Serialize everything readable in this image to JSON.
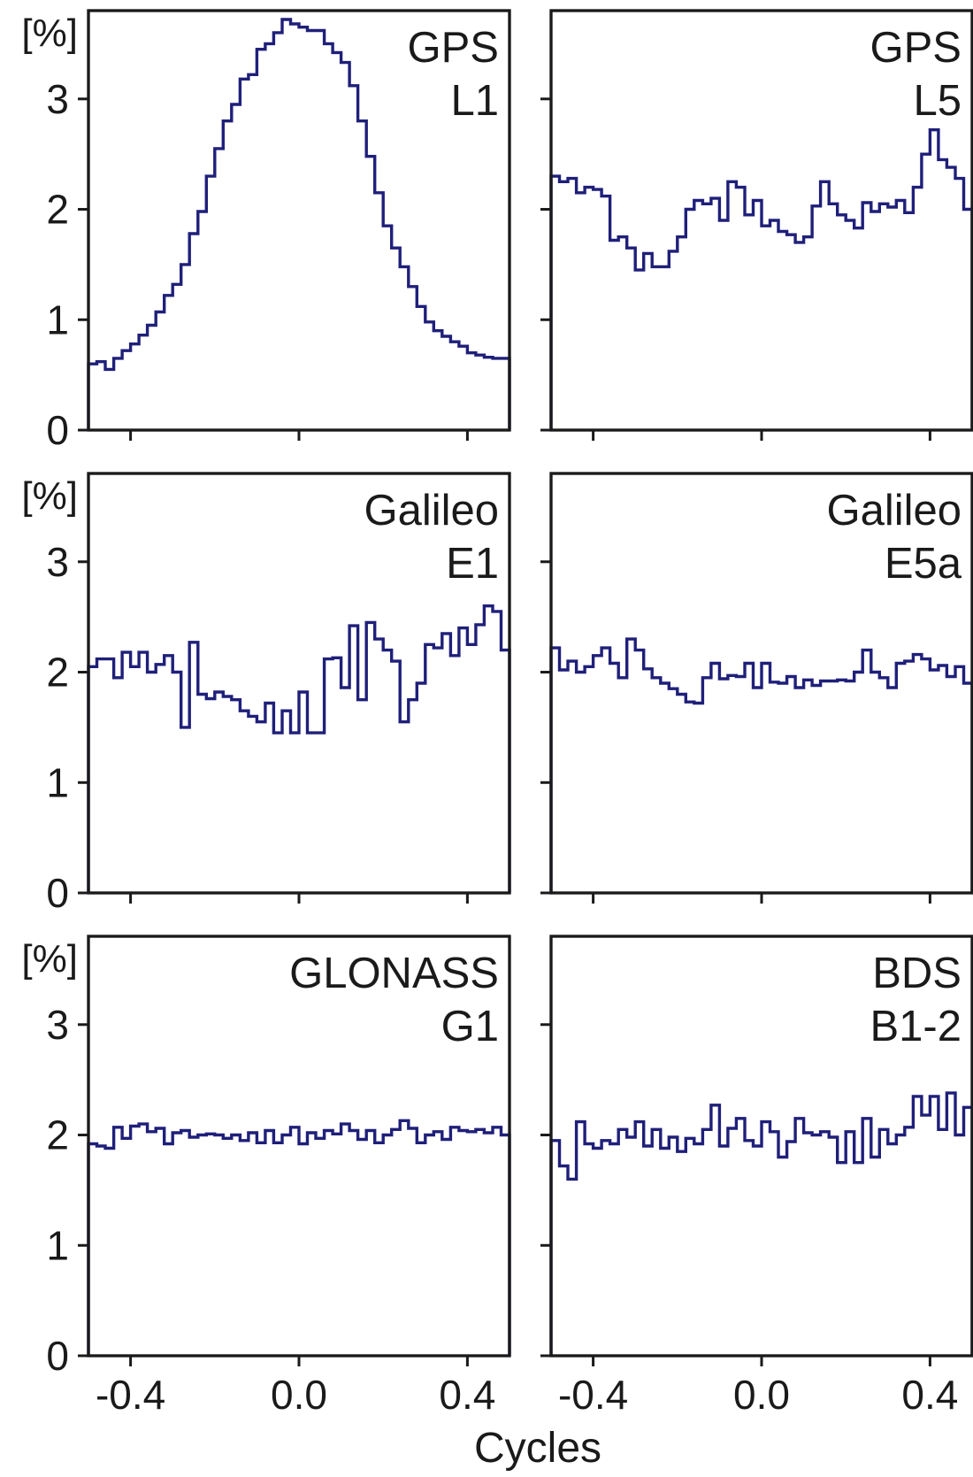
{
  "chart_data": {
    "type": "line",
    "layout": "3x2 grid",
    "xlabel": "Cycles",
    "ylabel": "[%]",
    "xlim": [
      -0.5,
      0.5
    ],
    "ylim": [
      0,
      3.8
    ],
    "xticks": [
      -0.4,
      0.0,
      0.4
    ],
    "xtick_labels": [
      "-0.4",
      "0.0",
      "0.4"
    ],
    "yticks": [
      0,
      1,
      2,
      3
    ],
    "ytick_labels": [
      "0",
      "1",
      "2",
      "3"
    ],
    "series_color": "#1f1f7a",
    "bins": 50,
    "panels": [
      {
        "label_line1": "GPS",
        "label_line2": "L1",
        "values": [
          0.6,
          0.62,
          0.55,
          0.65,
          0.72,
          0.78,
          0.86,
          0.95,
          1.07,
          1.22,
          1.32,
          1.5,
          1.78,
          1.98,
          2.3,
          2.55,
          2.8,
          2.95,
          3.18,
          3.22,
          3.45,
          3.5,
          3.6,
          3.72,
          3.68,
          3.65,
          3.62,
          3.62,
          3.5,
          3.42,
          3.33,
          3.12,
          2.8,
          2.48,
          2.15,
          1.85,
          1.65,
          1.48,
          1.3,
          1.12,
          0.98,
          0.9,
          0.85,
          0.8,
          0.76,
          0.7,
          0.68,
          0.66,
          0.65,
          0.65
        ]
      },
      {
        "label_line1": "GPS",
        "label_line2": "L5",
        "values": [
          2.3,
          2.25,
          2.28,
          2.15,
          2.2,
          2.18,
          2.12,
          1.72,
          1.75,
          1.65,
          1.45,
          1.6,
          1.48,
          1.48,
          1.62,
          1.75,
          2.0,
          2.08,
          2.05,
          2.1,
          1.9,
          2.25,
          2.2,
          1.95,
          2.08,
          1.85,
          1.9,
          1.8,
          1.77,
          1.7,
          1.75,
          2.03,
          2.25,
          2.05,
          1.95,
          1.9,
          1.83,
          2.06,
          1.98,
          2.05,
          2.02,
          2.08,
          1.97,
          2.2,
          2.5,
          2.72,
          2.45,
          2.38,
          2.28,
          2.0
        ]
      },
      {
        "label_line1": "Galileo",
        "label_line2": "E1",
        "values": [
          2.05,
          2.12,
          2.12,
          1.95,
          2.18,
          2.05,
          2.18,
          2.0,
          2.07,
          2.15,
          2.0,
          1.5,
          2.27,
          1.8,
          1.76,
          1.82,
          1.78,
          1.75,
          1.65,
          1.6,
          1.55,
          1.72,
          1.45,
          1.65,
          1.45,
          1.82,
          1.45,
          1.45,
          2.12,
          2.13,
          1.86,
          2.42,
          1.75,
          2.45,
          2.3,
          2.2,
          2.1,
          1.55,
          1.75,
          1.9,
          2.25,
          2.22,
          2.35,
          2.15,
          2.4,
          2.25,
          2.43,
          2.6,
          2.55,
          2.2
        ]
      },
      {
        "label_line1": "Galileo",
        "label_line2": "E5a",
        "values": [
          2.22,
          2.02,
          2.1,
          2.0,
          2.05,
          2.15,
          2.22,
          2.08,
          1.95,
          2.3,
          2.2,
          2.03,
          1.95,
          1.9,
          1.85,
          1.8,
          1.73,
          1.72,
          1.95,
          2.08,
          1.94,
          1.97,
          1.96,
          2.08,
          1.86,
          2.08,
          1.91,
          1.9,
          1.96,
          1.86,
          1.93,
          1.88,
          1.92,
          1.92,
          1.93,
          1.92,
          2.0,
          2.2,
          2.0,
          1.95,
          1.86,
          2.08,
          2.1,
          2.16,
          2.12,
          2.02,
          2.06,
          1.96,
          2.05,
          1.9
        ]
      },
      {
        "label_line1": "GLONASS",
        "label_line2": "G1",
        "values": [
          1.92,
          1.9,
          1.88,
          2.07,
          1.97,
          2.08,
          2.1,
          2.03,
          2.06,
          1.92,
          2.02,
          2.04,
          1.98,
          2.0,
          2.01,
          2.0,
          1.97,
          2.0,
          1.95,
          2.02,
          1.93,
          2.04,
          1.93,
          2.0,
          2.07,
          1.92,
          2.02,
          1.97,
          2.04,
          2.01,
          2.1,
          2.04,
          1.96,
          2.04,
          1.93,
          2.0,
          2.05,
          2.13,
          2.06,
          1.93,
          2.0,
          2.03,
          1.96,
          2.07,
          2.04,
          2.03,
          2.05,
          2.02,
          2.07,
          2.0
        ]
      },
      {
        "label_line1": "BDS",
        "label_line2": "B1-2",
        "values": [
          1.95,
          1.72,
          1.6,
          2.12,
          1.92,
          1.88,
          1.95,
          1.92,
          2.05,
          1.98,
          2.12,
          1.9,
          2.05,
          1.88,
          1.98,
          1.85,
          1.97,
          1.92,
          2.05,
          2.27,
          1.9,
          2.06,
          2.15,
          1.95,
          1.9,
          2.12,
          2.03,
          1.8,
          1.94,
          2.15,
          2.02,
          2.0,
          2.03,
          1.98,
          1.75,
          2.03,
          1.75,
          2.15,
          1.8,
          2.05,
          1.92,
          2.0,
          2.07,
          2.35,
          2.18,
          2.35,
          2.05,
          2.38,
          2.0,
          2.25
        ]
      }
    ]
  }
}
